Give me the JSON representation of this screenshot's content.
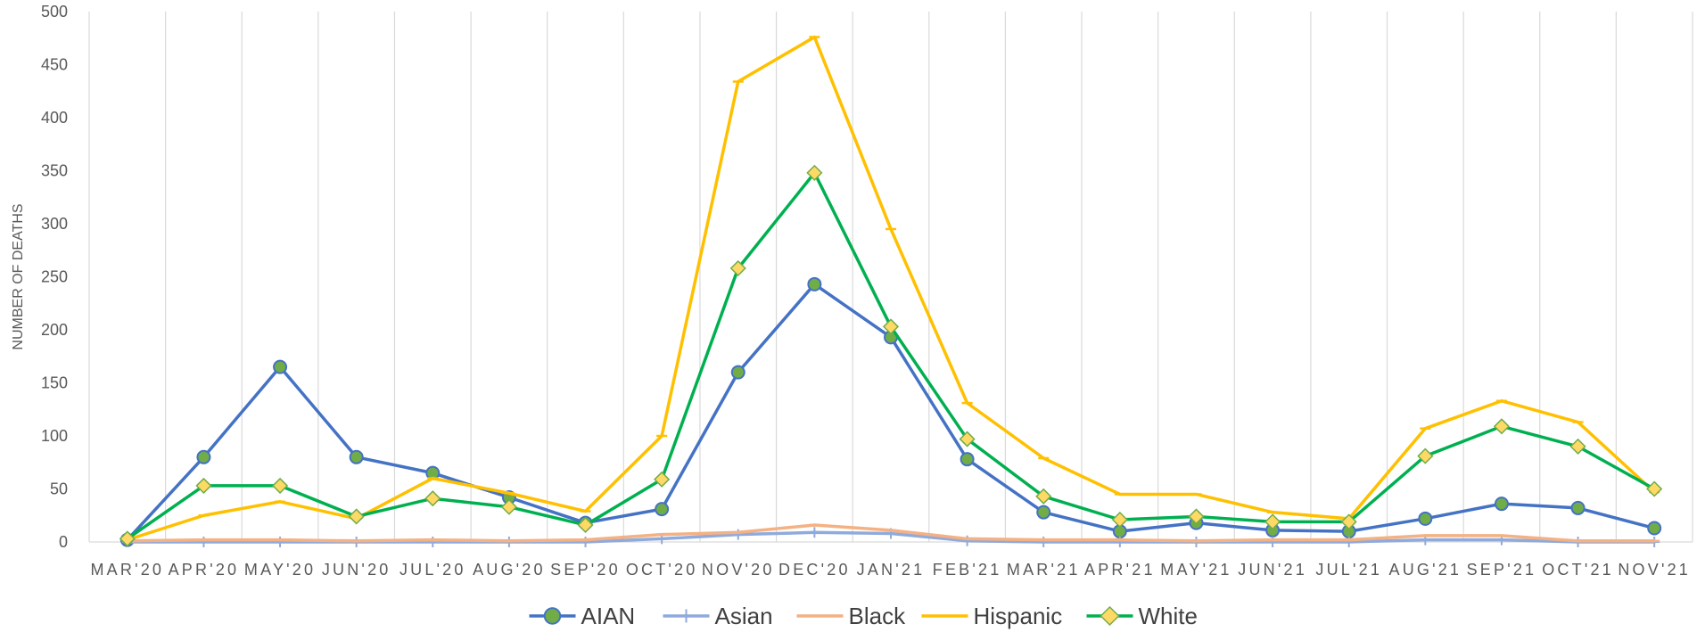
{
  "chart_data": {
    "type": "line",
    "title": "",
    "xlabel": "",
    "ylabel": "NUMBER OF DEATHS",
    "ylim": [
      0,
      500
    ],
    "yticks": [
      0,
      50,
      100,
      150,
      200,
      250,
      300,
      350,
      400,
      450,
      500
    ],
    "grid": "vertical",
    "legend_position": "bottom",
    "categories": [
      "MAR'20",
      "APR'20",
      "MAY'20",
      "JUN'20",
      "JUL'20",
      "AUG'20",
      "SEP'20",
      "OCT'20",
      "NOV'20",
      "DEC'20",
      "JAN'21",
      "FEB'21",
      "MAR'21",
      "APR'21",
      "MAY'21",
      "JUN'21",
      "JUL'21",
      "AUG'21",
      "SEP'21",
      "OCT'21",
      "NOV'21"
    ],
    "series": [
      {
        "name": "AIAN",
        "color": "#4472C4",
        "marker": "circle",
        "values": [
          2,
          80,
          165,
          80,
          65,
          42,
          18,
          31,
          160,
          243,
          193,
          78,
          28,
          10,
          18,
          11,
          10,
          22,
          36,
          32,
          13
        ]
      },
      {
        "name": "Asian",
        "color": "#8FAADC",
        "marker": "plus",
        "values": [
          0,
          0,
          0,
          0,
          0,
          0,
          0,
          3,
          7,
          9,
          8,
          1,
          0,
          0,
          0,
          0,
          0,
          2,
          2,
          0,
          0
        ]
      },
      {
        "name": "Black",
        "color": "#F4B183",
        "marker": "dash",
        "values": [
          1,
          2,
          2,
          1,
          2,
          1,
          2,
          7,
          9,
          16,
          11,
          3,
          2,
          2,
          1,
          2,
          2,
          6,
          6,
          1,
          1
        ]
      },
      {
        "name": "Hispanic",
        "color": "#FFC000",
        "marker": "dash",
        "values": [
          2,
          25,
          38,
          22,
          60,
          46,
          29,
          100,
          434,
          476,
          295,
          131,
          79,
          45,
          45,
          28,
          22,
          107,
          133,
          113,
          47
        ]
      },
      {
        "name": "White",
        "color": "#00B050",
        "marker": "diamond",
        "values": [
          3,
          53,
          53,
          24,
          41,
          33,
          16,
          59,
          258,
          348,
          203,
          97,
          43,
          21,
          24,
          19,
          19,
          81,
          109,
          90,
          50
        ]
      }
    ]
  }
}
